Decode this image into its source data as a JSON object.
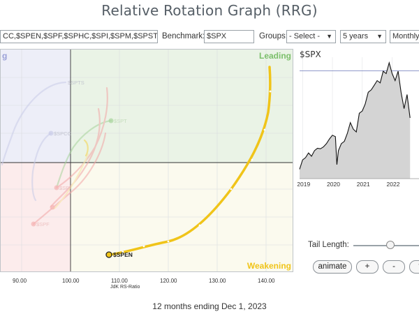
{
  "page": {
    "title": "Relative Rotation Graph (RRG)",
    "footer": "12 months ending Dec 1, 2023"
  },
  "toolbar": {
    "symbols_value": "CC,$SPEN,$SPF,$SPHC,$SPI,$SPM,$SPST,$",
    "benchmark_label": "Benchmark:",
    "benchmark_value": "$SPX",
    "groups_label": "Groups:",
    "groups_selected": "- Select -",
    "period_selected": "5 years",
    "frequency_selected": "Monthly"
  },
  "rrg": {
    "quadrant_labels": {
      "leading": "Leading",
      "weakening": "Weakening",
      "improving_partial": "g"
    },
    "xlabel": "JdK RS-Ratio",
    "x_ticks": [
      "90.00",
      "100.00",
      "110.00",
      "120.00",
      "130.00",
      "140.00"
    ],
    "highlighted_symbol": "$SPEN",
    "faded_symbols": [
      "$SPTS",
      "$SPCC",
      "$SPT",
      "$SPI",
      "$SPF"
    ],
    "colors": {
      "highlight": "#f0c419",
      "leading_bg": "#eaf3e6",
      "weakening_bg": "#fbfaee",
      "lagging_bg": "#fcecec",
      "improving_bg": "#edeef8"
    }
  },
  "chart_data": {
    "type": "line",
    "title": "$SPX",
    "x_ticks": [
      "2019",
      "2020",
      "2021",
      "2022"
    ],
    "x": [
      2018.9,
      2019.0,
      2019.1,
      2019.2,
      2019.3,
      2019.4,
      2019.5,
      2019.6,
      2019.7,
      2019.8,
      2019.9,
      2020.0,
      2020.1,
      2020.15,
      2020.2,
      2020.3,
      2020.4,
      2020.5,
      2020.6,
      2020.7,
      2020.8,
      2020.9,
      2021.0,
      2021.1,
      2021.2,
      2021.3,
      2021.4,
      2021.5,
      2021.6,
      2021.7,
      2021.8,
      2021.9,
      2022.0,
      2022.1,
      2022.2,
      2022.3,
      2022.4,
      2022.5,
      2022.6
    ],
    "y": [
      2500,
      2700,
      2750,
      2850,
      2780,
      2900,
      2950,
      2940,
      2980,
      3050,
      3150,
      3230,
      3200,
      2600,
      2900,
      3050,
      3100,
      3270,
      3500,
      3360,
      3300,
      3700,
      3750,
      3900,
      4150,
      4200,
      4300,
      4400,
      4350,
      4600,
      4550,
      4780,
      4550,
      4400,
      4600,
      4150,
      3800,
      4100,
      3600
    ]
  }
}
